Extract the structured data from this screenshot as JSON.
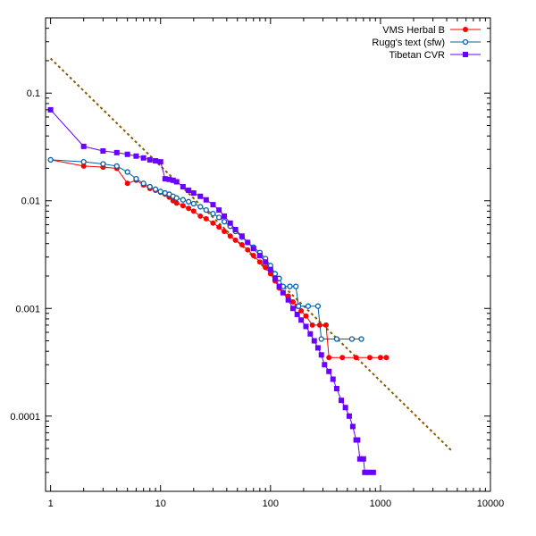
{
  "chart_data": {
    "type": "scatter",
    "x_scale": "log",
    "y_scale": "log",
    "xlim": [
      0.9,
      10000
    ],
    "ylim": [
      2e-05,
      0.5
    ],
    "x_ticks": [
      1,
      10,
      100,
      1000,
      10000
    ],
    "x_tick_labels": [
      "1",
      "10",
      "100",
      "1000",
      "10000"
    ],
    "y_ticks": [
      0.0001,
      0.001,
      0.01,
      0.1
    ],
    "y_tick_labels": [
      "0.0001",
      "0.001",
      "0.01",
      "0.1"
    ],
    "legend_position": "top-right",
    "grid": false,
    "series": [
      {
        "name": "VMS Herbal B",
        "color": "#ff0000",
        "marker": "circle-filled",
        "points": [
          [
            1,
            0.024
          ],
          [
            2,
            0.021
          ],
          [
            3,
            0.0205
          ],
          [
            4,
            0.02
          ],
          [
            5,
            0.0145
          ],
          [
            6,
            0.0155
          ],
          [
            7,
            0.014
          ],
          [
            8,
            0.013
          ],
          [
            9,
            0.0125
          ],
          [
            10,
            0.012
          ],
          [
            11,
            0.0115
          ],
          [
            12,
            0.0108
          ],
          [
            13,
            0.01
          ],
          [
            14,
            0.0095
          ],
          [
            16,
            0.009
          ],
          [
            18,
            0.0085
          ],
          [
            20,
            0.008
          ],
          [
            23,
            0.0072
          ],
          [
            26,
            0.0068
          ],
          [
            30,
            0.0062
          ],
          [
            34,
            0.0057
          ],
          [
            38,
            0.0052
          ],
          [
            43,
            0.0047
          ],
          [
            48,
            0.0043
          ],
          [
            55,
            0.0039
          ],
          [
            62,
            0.0035
          ],
          [
            70,
            0.0031
          ],
          [
            80,
            0.0027
          ],
          [
            90,
            0.0024
          ],
          [
            100,
            0.0021
          ],
          [
            110,
            0.0018
          ],
          [
            120,
            0.00155
          ],
          [
            130,
            0.0014
          ],
          [
            145,
            0.0013
          ],
          [
            160,
            0.00115
          ],
          [
            175,
            0.00105
          ],
          [
            190,
            0.00095
          ],
          [
            210,
            0.00085
          ],
          [
            240,
            0.0007
          ],
          [
            280,
            0.0007
          ],
          [
            320,
            0.0007
          ],
          [
            340,
            0.00035
          ],
          [
            450,
            0.00035
          ],
          [
            600,
            0.00035
          ],
          [
            800,
            0.00035
          ],
          [
            1000,
            0.00035
          ],
          [
            1130,
            0.00035
          ]
        ]
      },
      {
        "name": "Rugg's text (sfw)",
        "color": "#0060ad",
        "marker": "circle-open",
        "points": [
          [
            1,
            0.024
          ],
          [
            2,
            0.023
          ],
          [
            3,
            0.022
          ],
          [
            4,
            0.021
          ],
          [
            5,
            0.0185
          ],
          [
            6,
            0.016
          ],
          [
            7,
            0.0145
          ],
          [
            8,
            0.0135
          ],
          [
            9,
            0.0128
          ],
          [
            10,
            0.0122
          ],
          [
            11,
            0.0118
          ],
          [
            12,
            0.0115
          ],
          [
            13,
            0.011
          ],
          [
            14,
            0.0106
          ],
          [
            16,
            0.0102
          ],
          [
            18,
            0.0098
          ],
          [
            20,
            0.0094
          ],
          [
            23,
            0.0088
          ],
          [
            26,
            0.0082
          ],
          [
            30,
            0.0076
          ],
          [
            34,
            0.007
          ],
          [
            38,
            0.0064
          ],
          [
            43,
            0.0058
          ],
          [
            48,
            0.0052
          ],
          [
            55,
            0.0046
          ],
          [
            62,
            0.0041
          ],
          [
            70,
            0.0037
          ],
          [
            80,
            0.0033
          ],
          [
            90,
            0.0029
          ],
          [
            100,
            0.0025
          ],
          [
            110,
            0.0021
          ],
          [
            120,
            0.0019
          ],
          [
            130,
            0.0016
          ],
          [
            150,
            0.0016
          ],
          [
            170,
            0.0016
          ],
          [
            180,
            0.00105
          ],
          [
            220,
            0.00105
          ],
          [
            270,
            0.00105
          ],
          [
            290,
            0.00052
          ],
          [
            400,
            0.00052
          ],
          [
            550,
            0.00052
          ],
          [
            670,
            0.00052
          ]
        ]
      },
      {
        "name": "Tibetan CVR",
        "color": "#6a00ff",
        "marker": "square-filled",
        "points": [
          [
            1,
            0.07
          ],
          [
            2,
            0.032
          ],
          [
            3,
            0.029
          ],
          [
            4,
            0.028
          ],
          [
            5,
            0.027
          ],
          [
            6,
            0.026
          ],
          [
            7,
            0.025
          ],
          [
            8,
            0.024
          ],
          [
            9,
            0.0235
          ],
          [
            10,
            0.023
          ],
          [
            11,
            0.016
          ],
          [
            12,
            0.0158
          ],
          [
            13,
            0.0155
          ],
          [
            14,
            0.015
          ],
          [
            16,
            0.0135
          ],
          [
            18,
            0.0125
          ],
          [
            20,
            0.0118
          ],
          [
            23,
            0.011
          ],
          [
            26,
            0.0102
          ],
          [
            30,
            0.0092
          ],
          [
            34,
            0.0082
          ],
          [
            38,
            0.0072
          ],
          [
            43,
            0.0062
          ],
          [
            48,
            0.0054
          ],
          [
            55,
            0.0047
          ],
          [
            62,
            0.0041
          ],
          [
            70,
            0.0036
          ],
          [
            80,
            0.0031
          ],
          [
            90,
            0.0027
          ],
          [
            100,
            0.0023
          ],
          [
            110,
            0.0019
          ],
          [
            120,
            0.0016
          ],
          [
            130,
            0.0014
          ],
          [
            145,
            0.0012
          ],
          [
            160,
            0.001
          ],
          [
            175,
            0.00088
          ],
          [
            190,
            0.00078
          ],
          [
            210,
            0.00068
          ],
          [
            230,
            0.00058
          ],
          [
            250,
            0.0005
          ],
          [
            270,
            0.00043
          ],
          [
            290,
            0.00037
          ],
          [
            310,
            0.0003
          ],
          [
            340,
            0.00026
          ],
          [
            370,
            0.00022
          ],
          [
            400,
            0.00018
          ],
          [
            440,
            0.00014
          ],
          [
            480,
            0.00012
          ],
          [
            520,
            0.0001
          ],
          [
            560,
            8e-05
          ],
          [
            600,
            6e-05
          ],
          [
            620,
            6e-05
          ],
          [
            650,
            4e-05
          ],
          [
            700,
            4e-05
          ],
          [
            720,
            3e-05
          ],
          [
            780,
            3e-05
          ],
          [
            860,
            3e-05
          ]
        ]
      }
    ],
    "reference_line": {
      "color": "#8b5a00",
      "style": "dashed",
      "x": [
        1,
        4500
      ],
      "y": [
        0.21,
        4.7e-05
      ]
    }
  }
}
